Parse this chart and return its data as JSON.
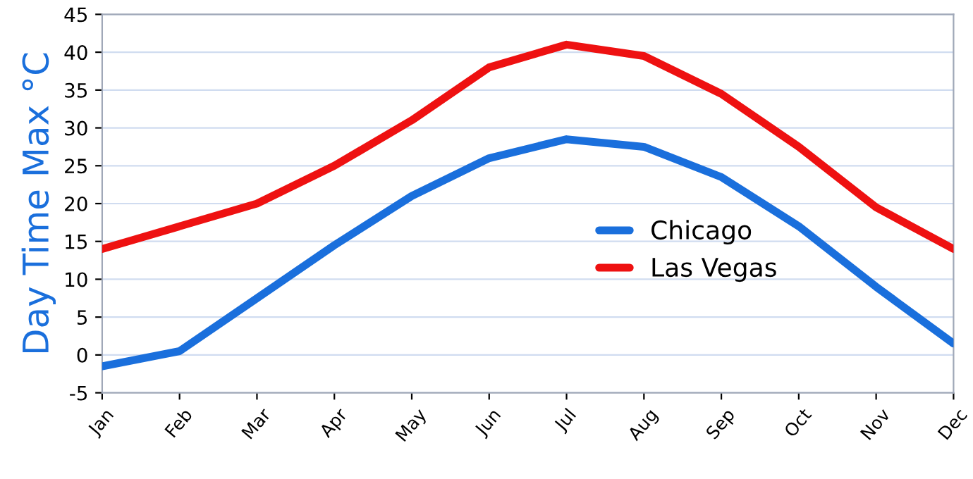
{
  "chart_data": {
    "type": "line",
    "ylabel": "Day Time Max °C",
    "categories": [
      "Jan",
      "Feb",
      "Mar",
      "Apr",
      "May",
      "Jun",
      "Jul",
      "Aug",
      "Sep",
      "Oct",
      "Nov",
      "Dec"
    ],
    "series": [
      {
        "name": "Chicago",
        "color": "#1a6fdc",
        "values": [
          -1.5,
          0.5,
          7.5,
          14.5,
          21,
          26,
          28.5,
          27.5,
          23.5,
          17,
          9,
          1.5
        ]
      },
      {
        "name": "Las Vegas",
        "color": "#ee1111",
        "values": [
          14,
          17,
          20,
          25,
          31,
          38,
          41,
          39.5,
          34.5,
          27.5,
          19.5,
          14
        ]
      }
    ],
    "ylim": [
      -5,
      45
    ],
    "yticks": [
      -5,
      0,
      5,
      10,
      15,
      20,
      25,
      30,
      35,
      40,
      45
    ],
    "grid": "y",
    "legend": "center right",
    "marker": "none",
    "line_style": "solid"
  }
}
